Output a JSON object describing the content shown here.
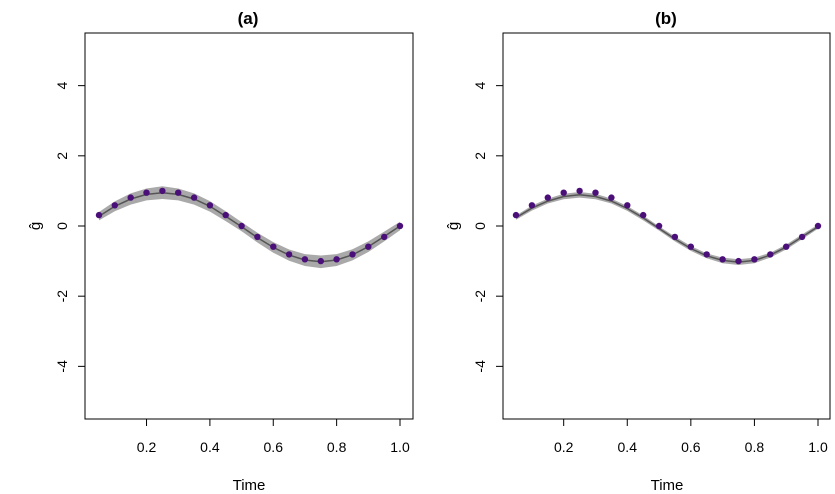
{
  "chart_data": [
    {
      "type": "line",
      "title": "(a)",
      "xlabel": "Time",
      "ylabel": "ĝ",
      "xlim": [
        0.05,
        1.0
      ],
      "ylim": [
        -5.5,
        5.5
      ],
      "xticks": [
        "0.2",
        "0.4",
        "0.6",
        "0.8",
        "1.0"
      ],
      "yticks": [
        "-4",
        "-2",
        "0",
        "2",
        "4"
      ],
      "x": [
        0.05,
        0.1,
        0.15,
        0.2,
        0.25,
        0.3,
        0.35,
        0.4,
        0.45,
        0.5,
        0.55,
        0.6,
        0.65,
        0.7,
        0.75,
        0.8,
        0.85,
        0.9,
        0.95,
        1.0
      ],
      "series": [
        {
          "name": "points",
          "values": [
            0.31,
            0.59,
            0.81,
            0.95,
            1.0,
            0.95,
            0.81,
            0.59,
            0.31,
            0.0,
            -0.31,
            -0.59,
            -0.81,
            -0.95,
            -1.0,
            -0.95,
            -0.81,
            -0.59,
            -0.31,
            0.0
          ]
        },
        {
          "name": "estimate",
          "values": [
            0.28,
            0.56,
            0.77,
            0.9,
            0.95,
            0.9,
            0.77,
            0.56,
            0.28,
            -0.02,
            -0.33,
            -0.61,
            -0.83,
            -0.97,
            -1.02,
            -0.97,
            -0.82,
            -0.59,
            -0.3,
            0.0
          ]
        },
        {
          "name": "band_width",
          "values": [
            0.12,
            0.14,
            0.16,
            0.17,
            0.18,
            0.17,
            0.16,
            0.15,
            0.14,
            0.13,
            0.14,
            0.15,
            0.16,
            0.17,
            0.18,
            0.17,
            0.16,
            0.15,
            0.14,
            0.12
          ]
        }
      ]
    },
    {
      "type": "line",
      "title": "(b)",
      "xlabel": "Time",
      "ylabel": "ĝ",
      "xlim": [
        0.05,
        1.0
      ],
      "ylim": [
        -5.5,
        5.5
      ],
      "xticks": [
        "0.2",
        "0.4",
        "0.6",
        "0.8",
        "1.0"
      ],
      "yticks": [
        "-4",
        "-2",
        "0",
        "2",
        "4"
      ],
      "x": [
        0.05,
        0.1,
        0.15,
        0.2,
        0.25,
        0.3,
        0.35,
        0.4,
        0.45,
        0.5,
        0.55,
        0.6,
        0.65,
        0.7,
        0.75,
        0.8,
        0.85,
        0.9,
        0.95,
        1.0
      ],
      "series": [
        {
          "name": "points",
          "values": [
            0.31,
            0.59,
            0.81,
            0.95,
            1.0,
            0.95,
            0.81,
            0.59,
            0.31,
            0.0,
            -0.31,
            -0.59,
            -0.81,
            -0.95,
            -1.0,
            -0.95,
            -0.81,
            -0.59,
            -0.31,
            0.0
          ]
        },
        {
          "name": "estimate",
          "values": [
            0.24,
            0.51,
            0.71,
            0.84,
            0.89,
            0.84,
            0.71,
            0.5,
            0.23,
            -0.07,
            -0.37,
            -0.64,
            -0.85,
            -0.98,
            -1.03,
            -0.98,
            -0.83,
            -0.6,
            -0.31,
            -0.02
          ]
        },
        {
          "name": "band_width",
          "values": [
            0.06,
            0.07,
            0.07,
            0.08,
            0.08,
            0.08,
            0.07,
            0.07,
            0.07,
            0.06,
            0.07,
            0.07,
            0.07,
            0.08,
            0.08,
            0.08,
            0.07,
            0.07,
            0.07,
            0.06
          ]
        }
      ]
    }
  ]
}
